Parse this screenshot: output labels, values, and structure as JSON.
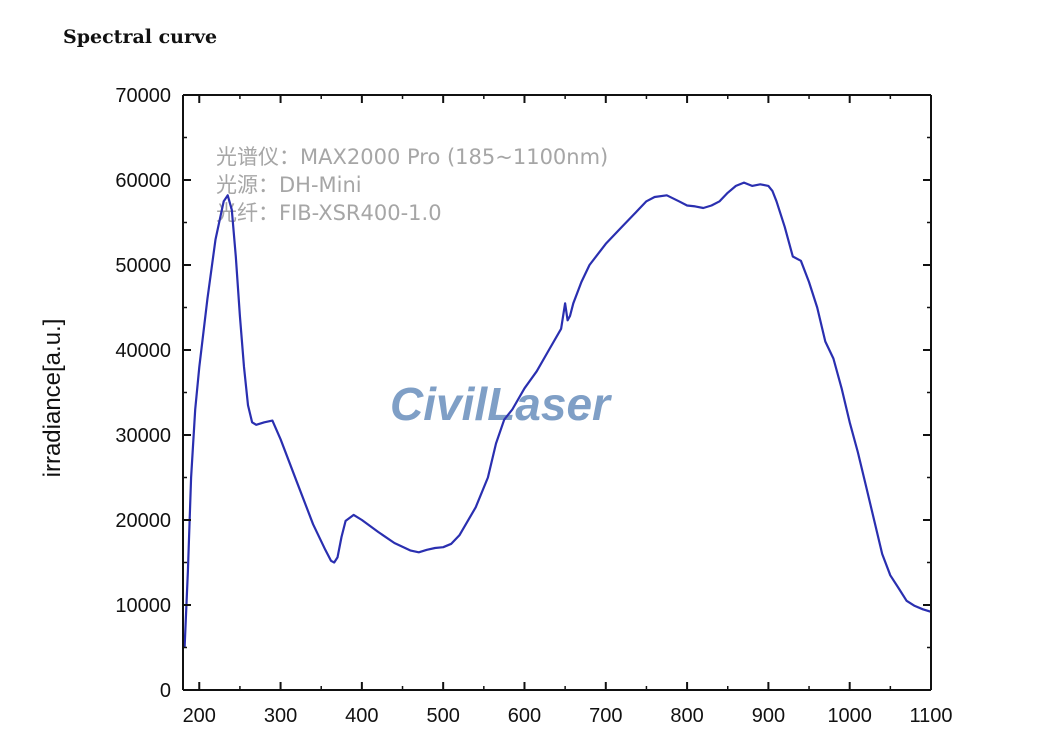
{
  "page_title": "Spectral curve",
  "chart_data": {
    "type": "line",
    "title": "",
    "xlabel": "",
    "ylabel": "irradiance[a.u.]",
    "xlim": [
      180,
      1100
    ],
    "ylim": [
      0,
      70000
    ],
    "grid": false,
    "x_ticks": [
      "200",
      "300",
      "400",
      "500",
      "600",
      "700",
      "800",
      "900",
      "1000",
      "1100"
    ],
    "y_ticks": [
      "0",
      "10000",
      "20000",
      "30000",
      "40000",
      "50000",
      "60000",
      "70000"
    ],
    "annotations": [
      "光谱仪：MAX2000 Pro (185~1100nm)",
      "光源：DH-Mini",
      "光纤：FIB-XSR400-1.0"
    ],
    "watermark": "CivilLaser",
    "line_color": "#2a2fb0",
    "series": [
      {
        "x": [
          182,
          186,
          190,
          195,
          200,
          210,
          220,
          230,
          235,
          240,
          245,
          250,
          255,
          260,
          265,
          270,
          280,
          290,
          300,
          320,
          340,
          355,
          362,
          366,
          370,
          375,
          380,
          390,
          400,
          420,
          440,
          460,
          470,
          480,
          490,
          500,
          510,
          520,
          540,
          555,
          565,
          575,
          585,
          600,
          615,
          630,
          645,
          650,
          653,
          656,
          660,
          670,
          680,
          700,
          720,
          740,
          750,
          760,
          775,
          790,
          800,
          810,
          820,
          830,
          840,
          850,
          860,
          870,
          880,
          890,
          900,
          905,
          910,
          920,
          930,
          940,
          950,
          960,
          970,
          980,
          990,
          1000,
          1010,
          1020,
          1030,
          1040,
          1050,
          1060,
          1070,
          1080,
          1090,
          1100
        ],
        "y": [
          5000,
          14000,
          25000,
          33000,
          38000,
          46000,
          53000,
          57500,
          58200,
          56500,
          51000,
          44000,
          38000,
          33500,
          31500,
          31200,
          31500,
          31700,
          29500,
          24500,
          19500,
          16500,
          15200,
          15000,
          15600,
          18000,
          19900,
          20600,
          20000,
          18600,
          17300,
          16400,
          16200,
          16500,
          16700,
          16800,
          17200,
          18200,
          21500,
          25000,
          29000,
          31800,
          33000,
          35500,
          37500,
          40000,
          42500,
          45500,
          43500,
          44000,
          45500,
          48000,
          50000,
          52500,
          54500,
          56500,
          57500,
          58000,
          58200,
          57500,
          57000,
          56900,
          56700,
          57000,
          57500,
          58500,
          59300,
          59700,
          59300,
          59500,
          59300,
          58700,
          57500,
          54500,
          51000,
          50500,
          48000,
          45000,
          41000,
          39000,
          35500,
          31500,
          28000,
          24000,
          20000,
          16000,
          13500,
          12000,
          10500,
          9900,
          9500,
          9200
        ]
      }
    ]
  }
}
